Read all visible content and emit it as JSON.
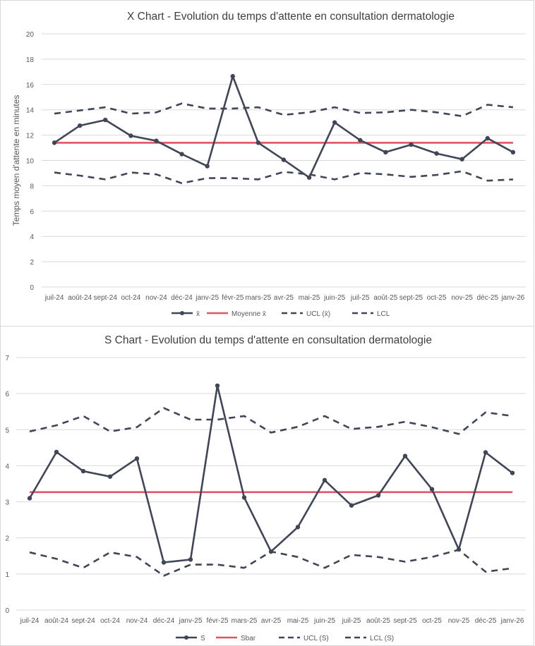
{
  "colors": {
    "series": "#404656",
    "mean": "#e05563",
    "grid": "#d9d9d9",
    "text": "#595959",
    "title": "#404040"
  },
  "chart_data": [
    {
      "type": "line",
      "title": "X Chart - Evolution du temps d'attente en consultation dermatologie",
      "xlabel": "",
      "ylabel": "Temps moyen d'attente en minutes",
      "ylim": [
        0,
        20
      ],
      "yticks": [
        0,
        2,
        4,
        6,
        8,
        10,
        12,
        14,
        16,
        18,
        20
      ],
      "categories": [
        "juil-24",
        "août-24",
        "sept-24",
        "oct-24",
        "nov-24",
        "déc-24",
        "janv-25",
        "févr-25",
        "mars-25",
        "avr-25",
        "mai-25",
        "juin-25",
        "juil-25",
        "août-25",
        "sept-25",
        "oct-25",
        "nov-25",
        "déc-25",
        "janv-26"
      ],
      "series": [
        {
          "name": "x̄",
          "style": "solid-marker",
          "values": [
            11.4,
            12.75,
            13.2,
            11.95,
            11.55,
            10.5,
            9.55,
            16.65,
            11.4,
            10.05,
            8.65,
            13.0,
            11.6,
            10.65,
            11.25,
            10.55,
            10.1,
            11.75,
            10.65
          ]
        },
        {
          "name": "Moyenne x̄",
          "style": "mean",
          "values": [
            11.4,
            11.4,
            11.4,
            11.4,
            11.4,
            11.4,
            11.4,
            11.4,
            11.4,
            11.4,
            11.4,
            11.4,
            11.4,
            11.4,
            11.4,
            11.4,
            11.4,
            11.4,
            11.4
          ]
        },
        {
          "name": "UCL (x̄)",
          "style": "dashed",
          "values": [
            13.7,
            13.95,
            14.2,
            13.7,
            13.8,
            14.5,
            14.1,
            14.1,
            14.2,
            13.6,
            13.8,
            14.2,
            13.75,
            13.8,
            14.0,
            13.8,
            13.5,
            14.4,
            14.2
          ]
        },
        {
          "name": "LCL",
          "style": "dashed",
          "values": [
            9.05,
            8.8,
            8.5,
            9.05,
            8.9,
            8.2,
            8.6,
            8.6,
            8.5,
            9.1,
            8.9,
            8.5,
            9.0,
            8.9,
            8.7,
            8.85,
            9.15,
            8.4,
            8.5
          ]
        }
      ],
      "legend": [
        "x̄",
        "Moyenne x̄",
        "UCL (x̄)",
        "LCL"
      ],
      "legend_position": "bottom",
      "grid": true
    },
    {
      "type": "line",
      "title": "S Chart - Evolution du temps d'attente en consultation dermatologie",
      "xlabel": "",
      "ylabel": "",
      "ylim": [
        0,
        7
      ],
      "yticks": [
        0,
        1,
        2,
        3,
        4,
        5,
        6,
        7
      ],
      "categories": [
        "juil-24",
        "août-24",
        "sept-24",
        "oct-24",
        "nov-24",
        "déc-24",
        "janv-25",
        "févr-25",
        "mars-25",
        "avr-25",
        "mai-25",
        "juin-25",
        "juil-25",
        "août-25",
        "sept-25",
        "oct-25",
        "nov-25",
        "déc-25",
        "janv-26"
      ],
      "series": [
        {
          "name": "S",
          "style": "solid-marker",
          "values": [
            3.1,
            4.38,
            3.85,
            3.7,
            4.2,
            1.32,
            1.4,
            6.22,
            3.12,
            1.62,
            2.3,
            3.6,
            2.9,
            3.18,
            4.27,
            3.35,
            1.68,
            4.37,
            3.8
          ]
        },
        {
          "name": "Sbar",
          "style": "mean",
          "values": [
            3.27,
            3.27,
            3.27,
            3.27,
            3.27,
            3.27,
            3.27,
            3.27,
            3.27,
            3.27,
            3.27,
            3.27,
            3.27,
            3.27,
            3.27,
            3.27,
            3.27,
            3.27,
            3.27
          ]
        },
        {
          "name": "UCL (S)",
          "style": "dashed",
          "values": [
            4.95,
            5.12,
            5.38,
            4.95,
            5.07,
            5.6,
            5.28,
            5.28,
            5.38,
            4.92,
            5.08,
            5.38,
            5.02,
            5.08,
            5.22,
            5.07,
            4.88,
            5.48,
            5.38
          ]
        },
        {
          "name": "LCL (S)",
          "style": "dashed",
          "values": [
            1.6,
            1.42,
            1.17,
            1.6,
            1.47,
            0.95,
            1.26,
            1.26,
            1.17,
            1.62,
            1.47,
            1.17,
            1.53,
            1.47,
            1.34,
            1.47,
            1.67,
            1.06,
            1.16
          ]
        }
      ],
      "legend": [
        "S",
        "Sbar",
        "UCL (S)",
        "LCL (S)"
      ],
      "legend_position": "bottom",
      "grid": true
    }
  ]
}
